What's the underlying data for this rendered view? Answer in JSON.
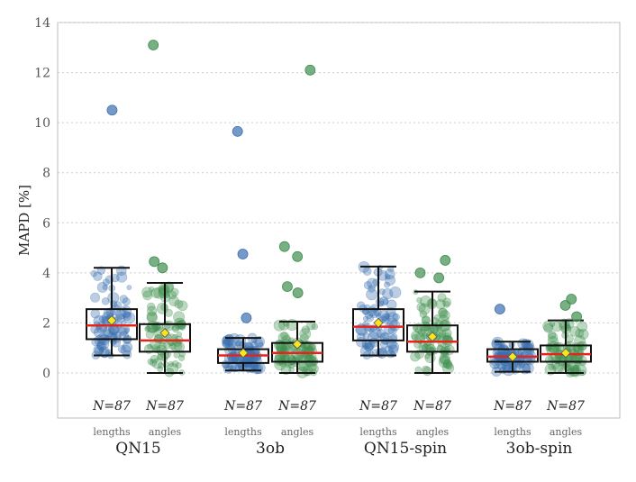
{
  "chart_data": {
    "type": "box",
    "ylabel": "MAPD [%]",
    "ylim": [
      -1.8,
      14
    ],
    "yticks": [
      0,
      2,
      4,
      6,
      8,
      10,
      12,
      14
    ],
    "grid": "horizontal-dotted",
    "groups": [
      {
        "name": "QN15",
        "boxes": [
          {
            "label": "lengths",
            "n_label": "N=87",
            "min": 0.7,
            "q1": 1.35,
            "median": 1.9,
            "mean": 2.1,
            "q3": 2.55,
            "max": 4.2,
            "outliers": [
              10.5
            ],
            "color": "#3a6fb0"
          },
          {
            "label": "angles",
            "n_label": "N=87",
            "min": 0.0,
            "q1": 0.85,
            "median": 1.3,
            "mean": 1.6,
            "q3": 1.95,
            "max": 3.6,
            "outliers": [
              13.1,
              4.45,
              4.2
            ],
            "color": "#3e8f4e"
          }
        ]
      },
      {
        "name": "3ob",
        "boxes": [
          {
            "label": "lengths",
            "n_label": "N=87",
            "min": 0.1,
            "q1": 0.4,
            "median": 0.7,
            "mean": 0.8,
            "q3": 0.95,
            "max": 1.4,
            "outliers": [
              9.65,
              4.75,
              2.2
            ],
            "color": "#3a6fb0"
          },
          {
            "label": "angles",
            "n_label": "N=87",
            "min": 0.0,
            "q1": 0.45,
            "median": 0.8,
            "mean": 1.15,
            "q3": 1.2,
            "max": 2.05,
            "outliers": [
              12.1,
              5.05,
              4.65,
              3.45,
              3.2
            ],
            "color": "#3e8f4e"
          }
        ]
      },
      {
        "name": "QN15-spin",
        "boxes": [
          {
            "label": "lengths",
            "n_label": "N=87",
            "min": 0.7,
            "q1": 1.3,
            "median": 1.85,
            "mean": 2.0,
            "q3": 2.55,
            "max": 4.25,
            "outliers": [],
            "color": "#3a6fb0"
          },
          {
            "label": "angles",
            "n_label": "N=87",
            "min": 0.0,
            "q1": 0.85,
            "median": 1.25,
            "mean": 1.45,
            "q3": 1.9,
            "max": 3.25,
            "outliers": [
              4.5,
              4.0,
              3.8
            ],
            "color": "#3e8f4e"
          }
        ]
      },
      {
        "name": "3ob-spin",
        "boxes": [
          {
            "label": "lengths",
            "n_label": "N=87",
            "min": 0.05,
            "q1": 0.45,
            "median": 0.65,
            "mean": 0.65,
            "q3": 0.95,
            "max": 1.25,
            "outliers": [
              2.55
            ],
            "color": "#3a6fb0"
          },
          {
            "label": "angles",
            "n_label": "N=87",
            "min": 0.0,
            "q1": 0.45,
            "median": 0.75,
            "mean": 0.8,
            "q3": 1.1,
            "max": 2.1,
            "outliers": [
              2.95,
              2.7,
              2.25
            ],
            "color": "#3e8f4e"
          }
        ]
      }
    ],
    "styles": {
      "median_color": "#e8231c",
      "mean_marker_color": "#f7e51e",
      "box_edge_color": "#111111",
      "grid_color": "#cccccc",
      "frame_color": "#bbbbbb"
    }
  }
}
